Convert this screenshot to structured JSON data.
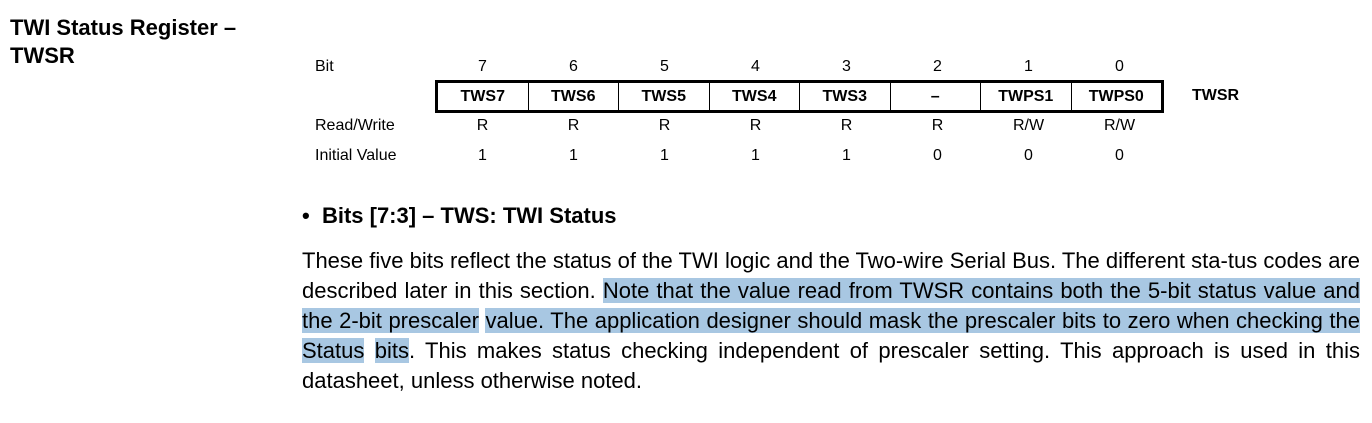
{
  "section": {
    "title_line1": "TWI Status Register –",
    "title_line2": "TWSR"
  },
  "register": {
    "name": "TWSR",
    "row_labels": {
      "bit": "Bit",
      "rw": "Read/Write",
      "init": "Initial Value"
    },
    "bits": [
      {
        "num": "7",
        "name": "TWS7",
        "rw": "R",
        "init": "1"
      },
      {
        "num": "6",
        "name": "TWS6",
        "rw": "R",
        "init": "1"
      },
      {
        "num": "5",
        "name": "TWS5",
        "rw": "R",
        "init": "1"
      },
      {
        "num": "4",
        "name": "TWS4",
        "rw": "R",
        "init": "1"
      },
      {
        "num": "3",
        "name": "TWS3",
        "rw": "R",
        "init": "1"
      },
      {
        "num": "2",
        "name": "–",
        "rw": "R",
        "init": "0"
      },
      {
        "num": "1",
        "name": "TWPS1",
        "rw": "R/W",
        "init": "0"
      },
      {
        "num": "0",
        "name": "TWPS0",
        "rw": "R/W",
        "init": "0"
      }
    ]
  },
  "bullet": {
    "symbol": "•",
    "heading": "Bits [7:3] – TWS: TWI Status"
  },
  "paragraph": {
    "part1": "These five bits reflect the status of the TWI logic and the Two-wire Serial Bus. The different sta-tus codes are described later in this section. ",
    "hl1": "Note that the value read from TWSR contains both the 5-bit status value and the 2-bit prescaler",
    "sp1": " ",
    "hl2": "value. The application designer should mask the prescaler bits to zero when checking the Status",
    "sp2": " ",
    "hl3": "bits",
    "part2": ". This makes status checking independent of prescaler setting. This approach is used in this datasheet, unless otherwise noted."
  },
  "colors": {
    "highlight": "#a8c7e2",
    "text": "#000000"
  }
}
